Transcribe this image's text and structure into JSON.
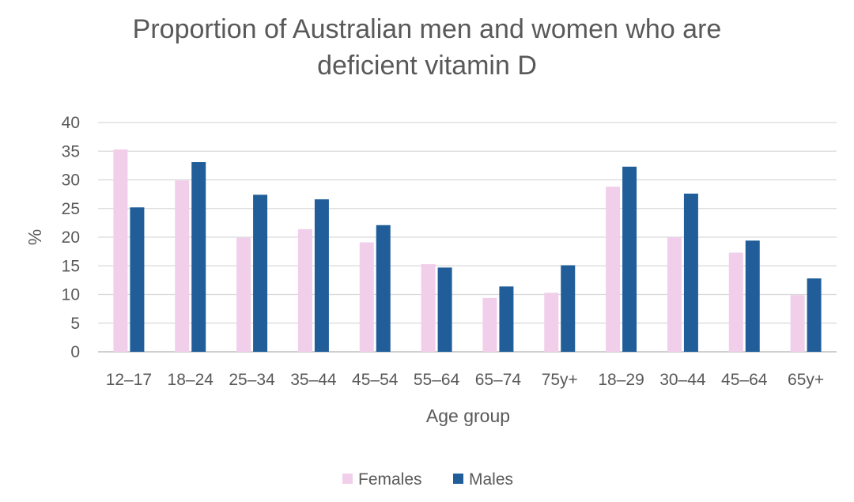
{
  "chart_data": {
    "type": "bar",
    "title_line1": "Proportion of Australian men and women who are",
    "title_line2": "deficient vitamin D",
    "xlabel": "Age group",
    "ylabel": "%",
    "ylim": [
      0,
      40
    ],
    "yticks": [
      0,
      5,
      10,
      15,
      20,
      25,
      30,
      35,
      40
    ],
    "grid": true,
    "legend_position": "bottom",
    "categories": [
      "12–17",
      "18–24",
      "25–34",
      "35–44",
      "45–54",
      "55–64",
      "65–74",
      "75y+",
      "18–29",
      "30–44",
      "45–64",
      "65y+"
    ],
    "series": [
      {
        "name": "Females",
        "color": "#f1cfea",
        "values": [
          35.3,
          29.9,
          19.9,
          21.4,
          19.1,
          15.3,
          9.4,
          10.3,
          28.8,
          20.0,
          17.3,
          9.9
        ]
      },
      {
        "name": "Males",
        "color": "#215e99",
        "values": [
          25.2,
          33.1,
          27.4,
          26.6,
          22.1,
          14.7,
          11.4,
          15.1,
          32.3,
          27.6,
          19.4,
          12.8
        ]
      }
    ]
  }
}
